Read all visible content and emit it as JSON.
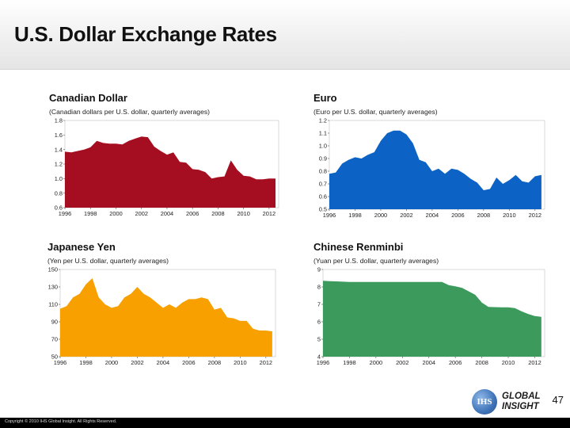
{
  "page": {
    "title": "U.S. Dollar Exchange Rates",
    "page_number": "47",
    "footer": "Copyright © 2010 IHS Global Insight. All Rights Reserved."
  },
  "logo": {
    "mark": "IHS",
    "line1": "GLOBAL",
    "line2": "INSIGHT"
  },
  "colors": {
    "cad": "#a50e20",
    "eur": "#0d63c5",
    "jpy": "#f7a000",
    "cny": "#3b9a5c"
  },
  "chart_data": [
    {
      "id": "cad",
      "type": "area",
      "title": "Canadian Dollar",
      "subtitle": "(Canadian dollars per U.S. dollar, quarterly averages)",
      "xlim": [
        1996,
        2012.75
      ],
      "ylim": [
        0.6,
        1.8
      ],
      "yticks": [
        "0.6",
        "0.8",
        "1.0",
        "1.2",
        "1.4",
        "1.6",
        "1.8"
      ],
      "xticks": [
        "1996",
        "1998",
        "2000",
        "2002",
        "2004",
        "2006",
        "2008",
        "2010",
        "2012"
      ],
      "x": [
        1996,
        1996.5,
        1997,
        1997.5,
        1998,
        1998.5,
        1999,
        1999.5,
        2000,
        2000.5,
        2001,
        2001.5,
        2002,
        2002.5,
        2003,
        2003.5,
        2004,
        2004.5,
        2005,
        2005.5,
        2006,
        2006.5,
        2007,
        2007.5,
        2008,
        2008.5,
        2009,
        2009.5,
        2010,
        2010.5,
        2011,
        2011.5,
        2012,
        2012.5
      ],
      "y": [
        1.37,
        1.36,
        1.38,
        1.4,
        1.43,
        1.52,
        1.49,
        1.48,
        1.48,
        1.47,
        1.52,
        1.55,
        1.58,
        1.57,
        1.44,
        1.38,
        1.33,
        1.36,
        1.23,
        1.22,
        1.13,
        1.12,
        1.09,
        1.0,
        1.02,
        1.03,
        1.25,
        1.12,
        1.04,
        1.03,
        0.99,
        0.99,
        1.0,
        1.0
      ]
    },
    {
      "id": "eur",
      "type": "area",
      "title": "Euro",
      "subtitle": "(Euro per U.S. dollar, quarterly averages)",
      "xlim": [
        1996,
        2012.75
      ],
      "ylim": [
        0.5,
        1.2
      ],
      "yticks": [
        "0.5",
        "0.6",
        "0.7",
        "0.8",
        "0.9",
        "1.0",
        "1.1",
        "1.2"
      ],
      "xticks": [
        "1996",
        "1998",
        "2000",
        "2002",
        "2004",
        "2006",
        "2008",
        "2010",
        "2012"
      ],
      "x": [
        1996,
        1996.5,
        1997,
        1997.5,
        1998,
        1998.5,
        1999,
        1999.5,
        2000,
        2000.5,
        2001,
        2001.5,
        2002,
        2002.5,
        2003,
        2003.5,
        2004,
        2004.5,
        2005,
        2005.5,
        2006,
        2006.5,
        2007,
        2007.5,
        2008,
        2008.5,
        2009,
        2009.5,
        2010,
        2010.5,
        2011,
        2011.5,
        2012,
        2012.5
      ],
      "y": [
        0.78,
        0.79,
        0.86,
        0.89,
        0.91,
        0.9,
        0.93,
        0.95,
        1.04,
        1.1,
        1.12,
        1.12,
        1.09,
        1.02,
        0.89,
        0.87,
        0.8,
        0.82,
        0.78,
        0.82,
        0.81,
        0.78,
        0.74,
        0.71,
        0.65,
        0.66,
        0.75,
        0.7,
        0.73,
        0.77,
        0.72,
        0.71,
        0.76,
        0.77
      ]
    },
    {
      "id": "jpy",
      "type": "area",
      "title": "Japanese Yen",
      "subtitle": "(Yen per U.S. dollar, quarterly averages)",
      "xlim": [
        1996,
        2012.75
      ],
      "ylim": [
        50,
        150
      ],
      "yticks": [
        "50",
        "70",
        "90",
        "110",
        "130",
        "150"
      ],
      "xticks": [
        "1996",
        "1998",
        "2000",
        "2002",
        "2004",
        "2006",
        "2008",
        "2010",
        "2012"
      ],
      "x": [
        1996,
        1996.5,
        1997,
        1997.5,
        1998,
        1998.5,
        1999,
        1999.5,
        2000,
        2000.5,
        2001,
        2001.5,
        2002,
        2002.5,
        2003,
        2003.5,
        2004,
        2004.5,
        2005,
        2005.5,
        2006,
        2006.5,
        2007,
        2007.5,
        2008,
        2008.5,
        2009,
        2009.5,
        2010,
        2010.5,
        2011,
        2011.5,
        2012,
        2012.5
      ],
      "y": [
        105,
        108,
        118,
        122,
        133,
        140,
        118,
        110,
        106,
        108,
        118,
        122,
        130,
        122,
        118,
        112,
        106,
        110,
        106,
        112,
        116,
        116,
        118,
        116,
        104,
        106,
        95,
        94,
        91,
        91,
        82,
        80,
        80,
        79
      ]
    },
    {
      "id": "cny",
      "type": "area",
      "title": "Chinese Renminbi",
      "subtitle": "(Yuan per U.S. dollar, quarterly averages)",
      "xlim": [
        1996,
        2012.75
      ],
      "ylim": [
        4,
        9
      ],
      "yticks": [
        "4",
        "5",
        "6",
        "7",
        "8",
        "9"
      ],
      "xticks": [
        "1996",
        "1998",
        "2000",
        "2002",
        "2004",
        "2006",
        "2008",
        "2010",
        "2012"
      ],
      "x": [
        1996,
        1996.5,
        1997,
        1997.5,
        1998,
        2000,
        2002,
        2004,
        2005,
        2005.5,
        2006,
        2006.5,
        2007,
        2007.5,
        2008,
        2008.5,
        2009,
        2009.5,
        2010,
        2010.5,
        2011,
        2011.5,
        2012,
        2012.5
      ],
      "y": [
        8.35,
        8.33,
        8.32,
        8.3,
        8.28,
        8.28,
        8.28,
        8.28,
        8.28,
        8.1,
        8.03,
        7.95,
        7.75,
        7.55,
        7.1,
        6.85,
        6.84,
        6.83,
        6.83,
        6.78,
        6.6,
        6.45,
        6.33,
        6.28
      ]
    }
  ]
}
